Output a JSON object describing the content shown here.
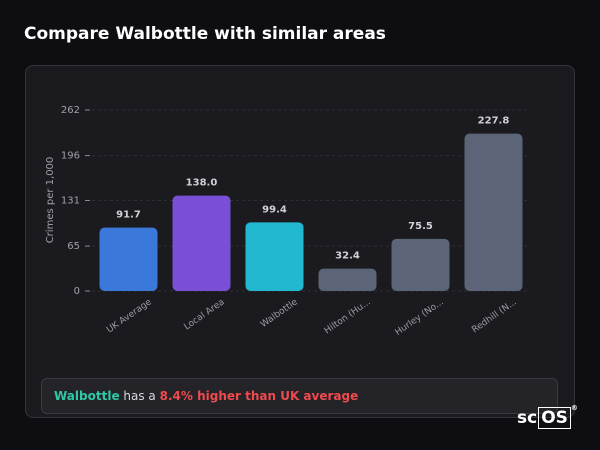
{
  "chart_data": {
    "type": "bar",
    "title": "Compare Walbottle with similar areas",
    "y_label": "Crimes per 1,000",
    "categories": [
      "UK Average",
      "Local Area",
      "Walbottle",
      "Hilton (Hu...",
      "Hurley (No...",
      "Redhill (N..."
    ],
    "values": [
      91.7,
      138.0,
      99.4,
      32.4,
      75.5,
      227.8
    ],
    "value_labels": [
      "91.7",
      "138.0",
      "99.4",
      "32.4",
      "75.5",
      "227.8"
    ],
    "colors": [
      "#3a78d9",
      "#7a4fd6",
      "#22b8d0",
      "#5b6577",
      "#5b6577",
      "#5b6577"
    ],
    "ylim": [
      0,
      262
    ],
    "yticks": [
      0,
      65,
      131,
      196,
      262
    ],
    "grid": true
  },
  "summary": {
    "area": "Walbottle",
    "middle": "has a",
    "highlight": "8.4% higher than UK average"
  },
  "logo": {
    "left": "sc",
    "right": "OS",
    "mark": "®"
  }
}
